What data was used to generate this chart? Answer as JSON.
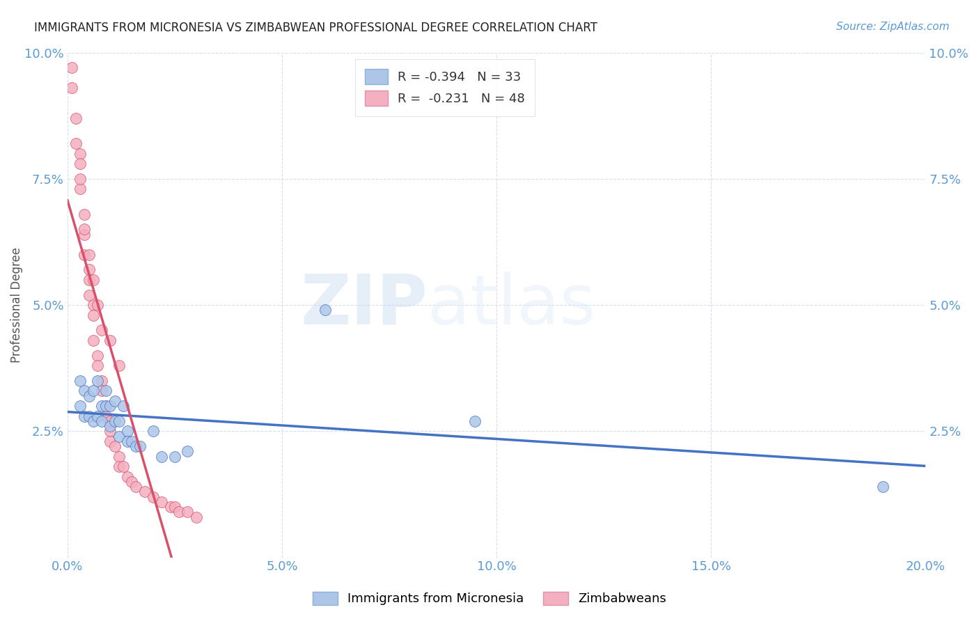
{
  "title": "IMMIGRANTS FROM MICRONESIA VS ZIMBABWEAN PROFESSIONAL DEGREE CORRELATION CHART",
  "source": "Source: ZipAtlas.com",
  "ylabel": "Professional Degree",
  "xlim": [
    0.0,
    0.2
  ],
  "ylim": [
    0.0,
    0.1
  ],
  "xticks": [
    0.0,
    0.05,
    0.1,
    0.15,
    0.2
  ],
  "yticks": [
    0.0,
    0.025,
    0.05,
    0.075,
    0.1
  ],
  "xticklabels": [
    "0.0%",
    "5.0%",
    "10.0%",
    "15.0%",
    "20.0%"
  ],
  "yticklabels": [
    "",
    "2.5%",
    "5.0%",
    "7.5%",
    "10.0%"
  ],
  "legend_label1": "Immigrants from Micronesia",
  "legend_label2": "Zimbabweans",
  "R1": -0.394,
  "N1": 33,
  "R2": -0.231,
  "N2": 48,
  "color1": "#adc6e8",
  "color2": "#f4afc0",
  "line_color1": "#4472c4",
  "line_color2": "#d9506a",
  "watermark_zip": "ZIP",
  "watermark_atlas": "atlas",
  "background_color": "#ffffff",
  "micronesia_x": [
    0.003,
    0.003,
    0.004,
    0.004,
    0.005,
    0.005,
    0.006,
    0.006,
    0.007,
    0.007,
    0.008,
    0.008,
    0.009,
    0.009,
    0.01,
    0.01,
    0.011,
    0.011,
    0.012,
    0.012,
    0.013,
    0.014,
    0.014,
    0.015,
    0.016,
    0.017,
    0.02,
    0.022,
    0.025,
    0.028,
    0.06,
    0.095,
    0.19
  ],
  "micronesia_y": [
    0.035,
    0.03,
    0.033,
    0.028,
    0.032,
    0.028,
    0.033,
    0.027,
    0.035,
    0.028,
    0.03,
    0.027,
    0.033,
    0.03,
    0.03,
    0.026,
    0.031,
    0.027,
    0.027,
    0.024,
    0.03,
    0.025,
    0.023,
    0.023,
    0.022,
    0.022,
    0.025,
    0.02,
    0.02,
    0.021,
    0.049,
    0.027,
    0.014
  ],
  "zimbabwe_x": [
    0.001,
    0.001,
    0.002,
    0.002,
    0.003,
    0.003,
    0.003,
    0.004,
    0.004,
    0.004,
    0.005,
    0.005,
    0.005,
    0.006,
    0.006,
    0.006,
    0.007,
    0.007,
    0.008,
    0.008,
    0.009,
    0.009,
    0.01,
    0.01,
    0.01,
    0.011,
    0.012,
    0.012,
    0.013,
    0.014,
    0.015,
    0.016,
    0.018,
    0.02,
    0.022,
    0.024,
    0.025,
    0.026,
    0.028,
    0.03,
    0.003,
    0.004,
    0.005,
    0.006,
    0.007,
    0.008,
    0.01,
    0.012
  ],
  "zimbabwe_y": [
    0.097,
    0.093,
    0.087,
    0.082,
    0.08,
    0.078,
    0.073,
    0.068,
    0.064,
    0.06,
    0.057,
    0.055,
    0.052,
    0.05,
    0.048,
    0.043,
    0.04,
    0.038,
    0.035,
    0.033,
    0.03,
    0.028,
    0.027,
    0.025,
    0.023,
    0.022,
    0.02,
    0.018,
    0.018,
    0.016,
    0.015,
    0.014,
    0.013,
    0.012,
    0.011,
    0.01,
    0.01,
    0.009,
    0.009,
    0.008,
    0.075,
    0.065,
    0.06,
    0.055,
    0.05,
    0.045,
    0.043,
    0.038
  ]
}
